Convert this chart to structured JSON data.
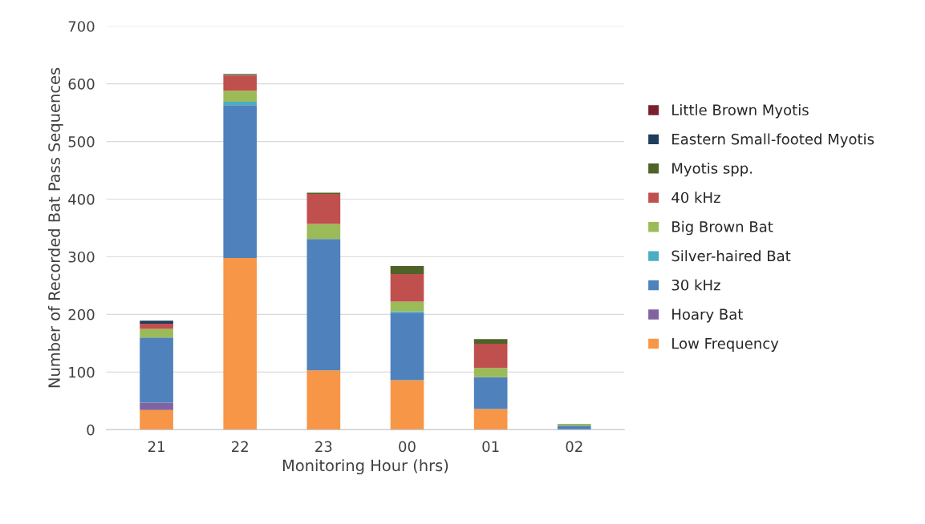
{
  "chart_data": {
    "type": "bar",
    "stacked": true,
    "xlabel": "Monitoring Hour (hrs)",
    "ylabel": "Number of Recorded Bat Pass Sequences",
    "categories": [
      "21",
      "22",
      "23",
      "00",
      "01",
      "02"
    ],
    "ylim": [
      0,
      700
    ],
    "yticks": [
      0,
      100,
      200,
      300,
      400,
      500,
      600,
      700
    ],
    "grid": "y",
    "legend": "right",
    "series": [
      {
        "name": "Low Frequency",
        "color": "#f79646",
        "values": [
          34,
          298,
          103,
          86,
          36,
          0
        ]
      },
      {
        "name": "Hoary Bat",
        "color": "#8064a2",
        "values": [
          13,
          0,
          0,
          0,
          0,
          0
        ]
      },
      {
        "name": "30 kHz",
        "color": "#4f81bd",
        "values": [
          113,
          265,
          228,
          117,
          55,
          7
        ]
      },
      {
        "name": "Silver-haired Bat",
        "color": "#4bacc6",
        "values": [
          0,
          6,
          0,
          2,
          0,
          0
        ]
      },
      {
        "name": "Big Brown Bat",
        "color": "#9bbb59",
        "values": [
          15,
          19,
          26,
          17,
          16,
          3
        ]
      },
      {
        "name": "40 kHz",
        "color": "#c0504d",
        "values": [
          9,
          26,
          52,
          48,
          42,
          0
        ]
      },
      {
        "name": "Myotis spp.",
        "color": "#4f6228",
        "values": [
          0,
          2,
          2,
          14,
          8,
          0
        ]
      },
      {
        "name": "Eastern Small-footed Myotis",
        "color": "#1f3d5c",
        "values": [
          5,
          0,
          0,
          0,
          0,
          0
        ]
      },
      {
        "name": "Little Brown Myotis",
        "color": "#7b1f2e",
        "values": [
          0,
          1,
          0,
          0,
          0,
          0
        ]
      }
    ]
  }
}
